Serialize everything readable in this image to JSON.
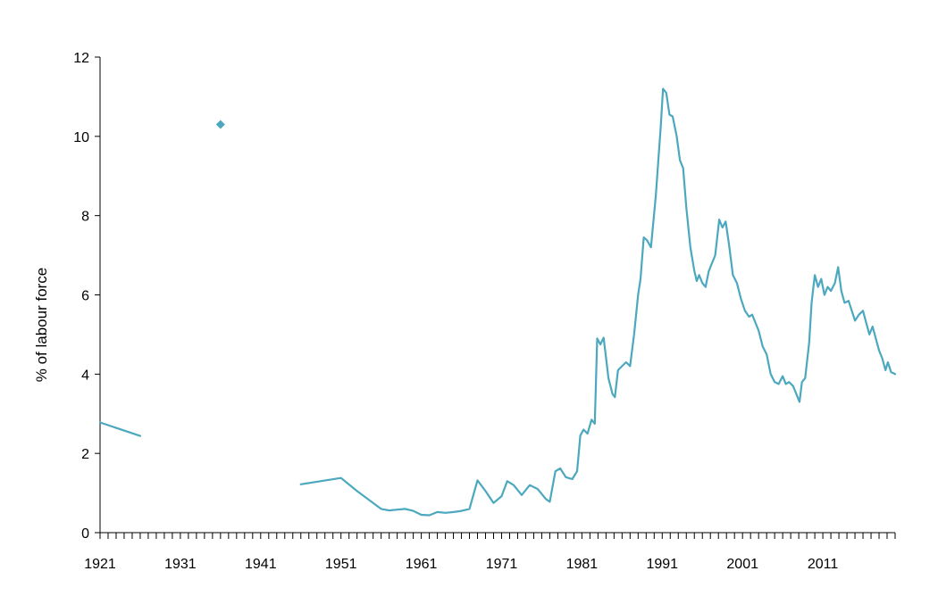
{
  "chart_data": {
    "type": "line",
    "title": "",
    "xlabel": "",
    "ylabel": "% of labour force",
    "xlim": [
      1921,
      2020
    ],
    "ylim": [
      0,
      12
    ],
    "y_ticks": [
      0,
      2,
      4,
      6,
      8,
      10,
      12
    ],
    "x_ticks": [
      1921,
      1931,
      1941,
      1951,
      1961,
      1971,
      1981,
      1991,
      2001,
      2011
    ],
    "grid": false,
    "legend": "none",
    "colors": {
      "series": "#4BA8BE",
      "axis": "#000000"
    },
    "series": [
      {
        "name": "segment-1921-1926",
        "points": [
          [
            1921,
            2.78
          ],
          [
            1926,
            2.44
          ]
        ]
      },
      {
        "name": "point-1936",
        "marker": "diamond",
        "points": [
          [
            1936,
            10.3
          ]
        ]
      },
      {
        "name": "segment-1946-2019",
        "points": [
          [
            1946,
            1.22
          ],
          [
            1951,
            1.38
          ],
          [
            1953,
            1.05
          ],
          [
            1955,
            0.75
          ],
          [
            1956,
            0.6
          ],
          [
            1957,
            0.56
          ],
          [
            1958,
            0.58
          ],
          [
            1959,
            0.6
          ],
          [
            1960,
            0.55
          ],
          [
            1961,
            0.45
          ],
          [
            1962,
            0.44
          ],
          [
            1963,
            0.52
          ],
          [
            1964,
            0.5
          ],
          [
            1965,
            0.52
          ],
          [
            1966,
            0.55
          ],
          [
            1967,
            0.6
          ],
          [
            1968,
            1.32
          ],
          [
            1969,
            1.05
          ],
          [
            1970,
            0.75
          ],
          [
            1971,
            0.92
          ],
          [
            1971.7,
            1.3
          ],
          [
            1972.5,
            1.2
          ],
          [
            1973.5,
            0.95
          ],
          [
            1974.5,
            1.2
          ],
          [
            1975.5,
            1.1
          ],
          [
            1976.5,
            0.85
          ],
          [
            1977,
            0.78
          ],
          [
            1977.7,
            1.55
          ],
          [
            1978.3,
            1.62
          ],
          [
            1979,
            1.4
          ],
          [
            1979.8,
            1.35
          ],
          [
            1980.4,
            1.55
          ],
          [
            1980.8,
            2.45
          ],
          [
            1981.2,
            2.6
          ],
          [
            1981.7,
            2.5
          ],
          [
            1982.2,
            2.85
          ],
          [
            1982.6,
            2.75
          ],
          [
            1982.9,
            4.9
          ],
          [
            1983.3,
            4.75
          ],
          [
            1983.7,
            4.92
          ],
          [
            1984.3,
            3.9
          ],
          [
            1984.8,
            3.5
          ],
          [
            1985.1,
            3.42
          ],
          [
            1985.5,
            4.1
          ],
          [
            1986,
            4.2
          ],
          [
            1986.5,
            4.3
          ],
          [
            1987,
            4.2
          ],
          [
            1987.5,
            5.0
          ],
          [
            1988,
            6.0
          ],
          [
            1988.3,
            6.4
          ],
          [
            1988.7,
            7.45
          ],
          [
            1989.1,
            7.38
          ],
          [
            1989.6,
            7.2
          ],
          [
            1990.2,
            8.5
          ],
          [
            1990.8,
            10.2
          ],
          [
            1991.1,
            11.2
          ],
          [
            1991.5,
            11.1
          ],
          [
            1991.9,
            10.55
          ],
          [
            1992.3,
            10.5
          ],
          [
            1992.8,
            10.0
          ],
          [
            1993.2,
            9.4
          ],
          [
            1993.6,
            9.2
          ],
          [
            1994,
            8.2
          ],
          [
            1994.5,
            7.2
          ],
          [
            1995,
            6.6
          ],
          [
            1995.3,
            6.35
          ],
          [
            1995.6,
            6.5
          ],
          [
            1996,
            6.3
          ],
          [
            1996.4,
            6.2
          ],
          [
            1996.8,
            6.6
          ],
          [
            1997.2,
            6.8
          ],
          [
            1997.6,
            7.0
          ],
          [
            1998.1,
            7.9
          ],
          [
            1998.5,
            7.7
          ],
          [
            1998.9,
            7.85
          ],
          [
            1999.3,
            7.3
          ],
          [
            1999.8,
            6.5
          ],
          [
            2000.3,
            6.3
          ],
          [
            2000.8,
            5.9
          ],
          [
            2001.3,
            5.6
          ],
          [
            2001.8,
            5.45
          ],
          [
            2002.2,
            5.5
          ],
          [
            2002.6,
            5.3
          ],
          [
            2003,
            5.1
          ],
          [
            2003.5,
            4.7
          ],
          [
            2004,
            4.5
          ],
          [
            2004.5,
            4.0
          ],
          [
            2005,
            3.8
          ],
          [
            2005.5,
            3.75
          ],
          [
            2006,
            3.95
          ],
          [
            2006.4,
            3.75
          ],
          [
            2006.8,
            3.8
          ],
          [
            2007.3,
            3.7
          ],
          [
            2007.8,
            3.45
          ],
          [
            2008.1,
            3.3
          ],
          [
            2008.4,
            3.8
          ],
          [
            2008.8,
            3.9
          ],
          [
            2009.3,
            4.8
          ],
          [
            2009.6,
            5.8
          ],
          [
            2010,
            6.5
          ],
          [
            2010.4,
            6.2
          ],
          [
            2010.8,
            6.4
          ],
          [
            2011.2,
            6.0
          ],
          [
            2011.6,
            6.2
          ],
          [
            2012,
            6.1
          ],
          [
            2012.5,
            6.3
          ],
          [
            2012.9,
            6.7
          ],
          [
            2013.3,
            6.1
          ],
          [
            2013.7,
            5.8
          ],
          [
            2014.2,
            5.85
          ],
          [
            2014.6,
            5.6
          ],
          [
            2015,
            5.35
          ],
          [
            2015.5,
            5.5
          ],
          [
            2016,
            5.6
          ],
          [
            2016.4,
            5.3
          ],
          [
            2016.8,
            5.0
          ],
          [
            2017.2,
            5.2
          ],
          [
            2017.6,
            4.9
          ],
          [
            2018,
            4.6
          ],
          [
            2018.4,
            4.4
          ],
          [
            2018.8,
            4.1
          ],
          [
            2019.1,
            4.3
          ],
          [
            2019.5,
            4.05
          ],
          [
            2020,
            4.0
          ]
        ]
      }
    ]
  }
}
